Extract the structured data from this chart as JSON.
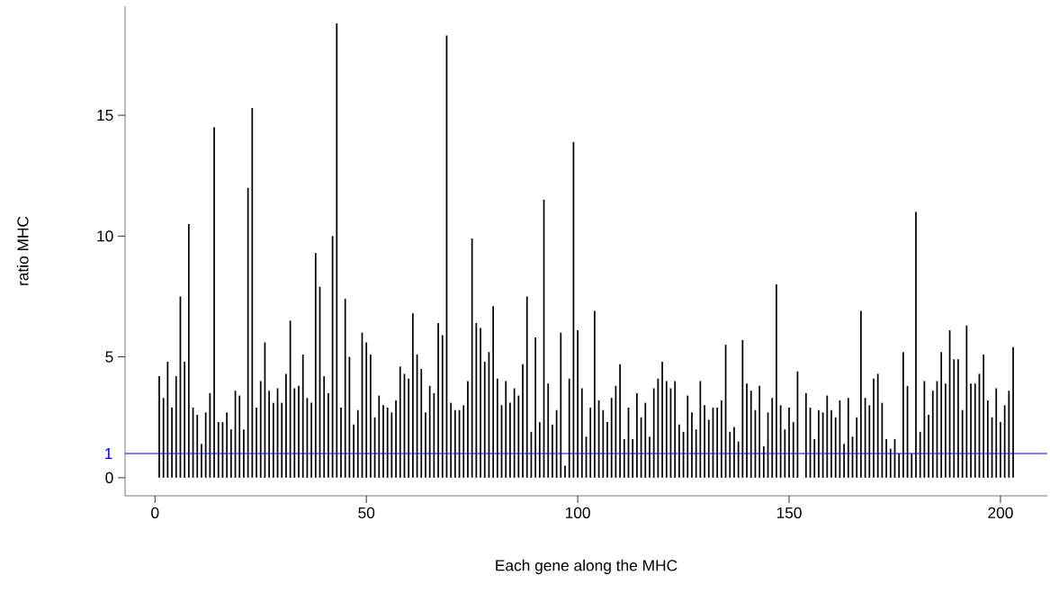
{
  "chart_data": {
    "type": "bar",
    "xlabel": "Each gene along the MHC",
    "ylabel": "ratio MHC",
    "x": [
      1,
      2,
      3,
      4,
      5,
      6,
      7,
      8,
      9,
      10,
      11,
      12,
      13,
      14,
      15,
      16,
      17,
      18,
      19,
      20,
      21,
      22,
      23,
      24,
      25,
      26,
      27,
      28,
      29,
      30,
      31,
      32,
      33,
      34,
      35,
      36,
      37,
      38,
      39,
      40,
      41,
      42,
      43,
      44,
      45,
      46,
      47,
      48,
      49,
      50,
      51,
      52,
      53,
      54,
      55,
      56,
      57,
      58,
      59,
      60,
      61,
      62,
      63,
      64,
      65,
      66,
      67,
      68,
      69,
      70,
      71,
      72,
      73,
      74,
      75,
      76,
      77,
      78,
      79,
      80,
      81,
      82,
      83,
      84,
      85,
      86,
      87,
      88,
      89,
      90,
      91,
      92,
      93,
      94,
      95,
      96,
      97,
      98,
      99,
      100,
      101,
      102,
      103,
      104,
      105,
      106,
      107,
      108,
      109,
      110,
      111,
      112,
      113,
      114,
      115,
      116,
      117,
      118,
      119,
      120,
      121,
      122,
      123,
      124,
      125,
      126,
      127,
      128,
      129,
      130,
      131,
      132,
      133,
      134,
      135,
      136,
      137,
      138,
      139,
      140,
      141,
      142,
      143,
      144,
      145,
      146,
      147,
      148,
      149,
      150,
      151,
      152,
      153,
      154,
      155,
      156,
      157,
      158,
      159,
      160,
      161,
      162,
      163,
      164,
      165,
      166,
      167,
      168,
      169,
      170,
      171,
      172,
      173,
      174,
      175,
      176,
      177,
      178,
      179,
      180,
      181,
      182,
      183,
      184,
      185,
      186,
      187,
      188,
      189,
      190,
      191,
      192,
      193,
      194,
      195,
      196,
      197,
      198,
      199,
      200,
      201,
      202,
      203
    ],
    "values": [
      4.2,
      3.3,
      4.8,
      2.9,
      4.2,
      7.5,
      4.8,
      10.5,
      2.9,
      2.6,
      1.4,
      2.7,
      3.5,
      14.5,
      2.3,
      2.3,
      2.7,
      2.0,
      3.6,
      3.4,
      2.0,
      12.0,
      15.3,
      2.9,
      4.0,
      5.6,
      3.6,
      3.1,
      3.7,
      3.1,
      4.3,
      6.5,
      3.7,
      3.8,
      5.1,
      3.3,
      3.1,
      9.3,
      7.9,
      4.2,
      3.5,
      10.0,
      18.8,
      2.9,
      7.4,
      5.0,
      2.2,
      2.8,
      6.0,
      5.6,
      5.1,
      2.5,
      3.4,
      3.0,
      2.9,
      2.7,
      3.2,
      4.6,
      4.3,
      4.1,
      6.8,
      5.1,
      4.5,
      2.7,
      3.8,
      3.5,
      6.4,
      5.9,
      18.3,
      3.1,
      2.8,
      2.8,
      3.0,
      4.0,
      9.9,
      6.4,
      6.2,
      4.8,
      5.2,
      7.1,
      4.1,
      3.0,
      4.0,
      3.1,
      3.7,
      3.4,
      4.7,
      7.5,
      1.9,
      5.8,
      2.3,
      11.5,
      3.9,
      2.2,
      2.8,
      6.0,
      0.5,
      4.1,
      13.9,
      6.1,
      3.7,
      1.7,
      2.9,
      6.9,
      3.2,
      2.8,
      2.3,
      3.3,
      3.8,
      4.7,
      1.6,
      2.9,
      1.6,
      3.5,
      2.5,
      3.1,
      1.7,
      3.7,
      4.1,
      4.8,
      4.0,
      3.7,
      4.0,
      2.2,
      1.9,
      3.4,
      2.7,
      2.0,
      4.0,
      3.0,
      2.4,
      2.9,
      2.9,
      3.2,
      5.5,
      1.9,
      2.1,
      1.5,
      5.7,
      3.9,
      3.6,
      2.8,
      3.8,
      1.3,
      2.7,
      3.3,
      8.0,
      3.0,
      2.0,
      2.9,
      2.3,
      4.4,
      null,
      3.5,
      2.9,
      1.6,
      2.8,
      2.7,
      3.4,
      2.8,
      2.5,
      3.2,
      1.4,
      3.3,
      1.7,
      2.5,
      6.9,
      3.3,
      3.0,
      4.1,
      4.3,
      3.1,
      1.6,
      1.2,
      1.6,
      1.0,
      5.2,
      3.8,
      1.0,
      11.0,
      1.9,
      4.0,
      2.6,
      3.6,
      4.0,
      5.2,
      3.9,
      6.1,
      4.9,
      4.9,
      2.8,
      6.3,
      3.9,
      3.9,
      4.3,
      5.1,
      3.2,
      2.5,
      3.7,
      2.3,
      3.0,
      3.6,
      5.4
    ],
    "color": "#000000",
    "xlim": [
      -7.08,
      211.08
    ],
    "ylim": [
      -0.75,
      19.51
    ],
    "xticks": [
      0,
      50,
      100,
      150,
      200
    ],
    "yticks": [
      0,
      5,
      10,
      15
    ],
    "ref_lines": [
      {
        "axis": "y",
        "value": 1,
        "label": "1",
        "color": "#0000ff"
      }
    ]
  }
}
